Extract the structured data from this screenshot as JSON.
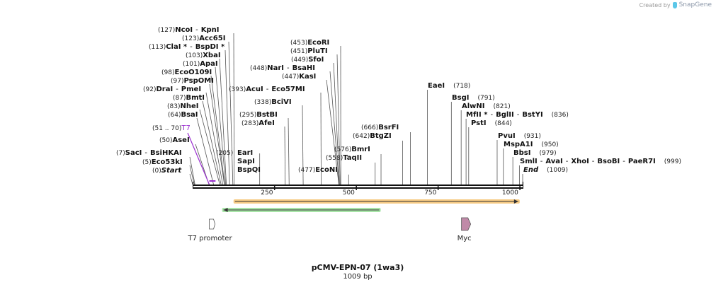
{
  "credit": {
    "prefix": "Created by",
    "brand": "SnapGene",
    "logo_icon": "snapgene-logo-icon"
  },
  "plasmid": {
    "name": "pCMV-EPN-07 (1wa3)",
    "length_label": "1009 bp",
    "length": 1009
  },
  "axis": {
    "ticks": [
      250,
      500,
      750,
      1000
    ]
  },
  "colors": {
    "t7_site": "#9b30d0",
    "orange_bar": "#f0a020",
    "green_bar": "#60d060",
    "myc": "#c08aa8"
  },
  "site_groups": [
    {
      "pos": 0,
      "label": "(0)",
      "names": [
        "Start"
      ],
      "style": "italic"
    },
    {
      "pos": 5,
      "label": "(5)",
      "names": [
        "Eco53kI"
      ]
    },
    {
      "pos": 7,
      "label": "(7)",
      "names": [
        "SacI",
        "BsiHKAI"
      ]
    },
    {
      "pos": 50,
      "label": "(50)",
      "names": [
        "AseI"
      ]
    },
    {
      "pos": 51,
      "label": "(51 .. 70)",
      "names": [
        "T7"
      ],
      "style": "t7"
    },
    {
      "pos": 64,
      "label": "(64)",
      "names": [
        "BsaI"
      ]
    },
    {
      "pos": 83,
      "label": "(83)",
      "names": [
        "NheI"
      ]
    },
    {
      "pos": 87,
      "label": "(87)",
      "names": [
        "BmtI"
      ]
    },
    {
      "pos": 92,
      "label": "(92)",
      "names": [
        "DraI",
        "PmeI"
      ]
    },
    {
      "pos": 97,
      "label": "(97)",
      "names": [
        "PspOMI"
      ]
    },
    {
      "pos": 98,
      "label": "(98)",
      "names": [
        "EcoO109I"
      ]
    },
    {
      "pos": 101,
      "label": "(101)",
      "names": [
        "ApaI"
      ]
    },
    {
      "pos": 103,
      "label": "(103)",
      "names": [
        "XbaI"
      ]
    },
    {
      "pos": 113,
      "label": "(113)",
      "names": [
        "ClaI *",
        "BspDI *"
      ]
    },
    {
      "pos": 123,
      "label": "(123)",
      "names": [
        "Acc65I"
      ]
    },
    {
      "pos": 127,
      "label": "(127)",
      "names": [
        "NcoI",
        "KpnI"
      ]
    },
    {
      "pos": 205,
      "label": "(205)",
      "names": [
        "EarI",
        "SapI",
        "BspQI"
      ],
      "style": "stack"
    },
    {
      "pos": 283,
      "label": "(283)",
      "names": [
        "AfeI"
      ]
    },
    {
      "pos": 295,
      "label": "(295)",
      "names": [
        "BstBI"
      ]
    },
    {
      "pos": 338,
      "label": "(338)",
      "names": [
        "BciVI"
      ]
    },
    {
      "pos": 393,
      "label": "(393)",
      "names": [
        "AcuI",
        "Eco57MI"
      ]
    },
    {
      "pos": 447,
      "label": "(447)",
      "names": [
        "KasI"
      ]
    },
    {
      "pos": 448,
      "label": "(448)",
      "names": [
        "NarI",
        "BsaHI"
      ]
    },
    {
      "pos": 449,
      "label": "(449)",
      "names": [
        "SfoI"
      ]
    },
    {
      "pos": 451,
      "label": "(451)",
      "names": [
        "PluTI"
      ]
    },
    {
      "pos": 453,
      "label": "(453)",
      "names": [
        "EcoRI"
      ]
    },
    {
      "pos": 477,
      "label": "(477)",
      "names": [
        "EcoNI"
      ]
    },
    {
      "pos": 558,
      "label": "(558)",
      "names": [
        "TaqII"
      ]
    },
    {
      "pos": 576,
      "label": "(576)",
      "names": [
        "BmrI"
      ]
    },
    {
      "pos": 642,
      "label": "(642)",
      "names": [
        "BtgZI"
      ]
    },
    {
      "pos": 666,
      "label": "(666)",
      "names": [
        "BsrFI"
      ]
    },
    {
      "pos": 718,
      "label": "(718)",
      "names": [
        "EaeI"
      ]
    },
    {
      "pos": 791,
      "label": "(791)",
      "names": [
        "BsgI"
      ]
    },
    {
      "pos": 821,
      "label": "(821)",
      "names": [
        "AlwNI"
      ]
    },
    {
      "pos": 836,
      "label": "(836)",
      "names": [
        "MfII *",
        "BglII",
        "BstYI"
      ]
    },
    {
      "pos": 844,
      "label": "(844)",
      "names": [
        "PstI"
      ]
    },
    {
      "pos": 931,
      "label": "(931)",
      "names": [
        "PvuI"
      ]
    },
    {
      "pos": 950,
      "label": "(950)",
      "names": [
        "MspA1I"
      ]
    },
    {
      "pos": 979,
      "label": "(979)",
      "names": [
        "BbsI"
      ]
    },
    {
      "pos": 999,
      "label": "(999)",
      "names": [
        "SmlI",
        "AvaI",
        "XhoI",
        "BsoBI",
        "PaeR7I"
      ]
    },
    {
      "pos": 1009,
      "label": "(1009)",
      "names": [
        "End"
      ],
      "style": "italic"
    }
  ],
  "features": [
    {
      "type": "bar",
      "name": "orange-orf",
      "start": 125,
      "end": 1000,
      "direction": "forward",
      "color": "#f0a020"
    },
    {
      "type": "bar",
      "name": "green-orf",
      "start": 90,
      "end": 575,
      "direction": "reverse",
      "color": "#60d060"
    },
    {
      "type": "promoter",
      "label": "T7 promoter",
      "start": 51,
      "end": 70,
      "direction": "forward"
    },
    {
      "type": "tag",
      "label": "Myc",
      "start": 820,
      "end": 850,
      "direction": "forward"
    }
  ]
}
